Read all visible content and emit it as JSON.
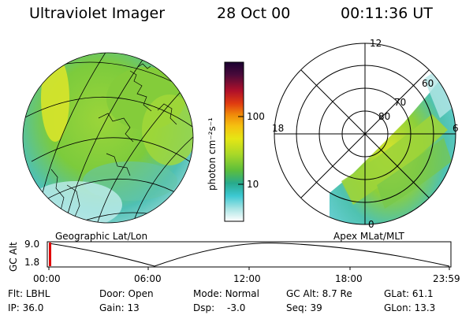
{
  "header": {
    "title": "Ultraviolet Imager",
    "date": "28 Oct 00",
    "time": "00:11:36 UT"
  },
  "colorbar": {
    "unit": "photon cm⁻²s⁻¹",
    "ticks": [
      "100",
      "10"
    ],
    "colors": [
      "#1a0030",
      "#4a0a3a",
      "#8a0f2a",
      "#c81414",
      "#e03c10",
      "#f08a0a",
      "#f5c010",
      "#e6e614",
      "#b4dc1e",
      "#78c832",
      "#3cb43c",
      "#28aa8c",
      "#3cc8d2",
      "#8cdcdc",
      "#c8ecec",
      "#ffffff"
    ]
  },
  "left_map": {
    "caption": "Geographic Lat/Lon"
  },
  "right_map": {
    "caption": "Apex MLat/MLT",
    "mlt_labels": {
      "top": "12",
      "left": "18",
      "right": "6",
      "bottom": "0"
    },
    "lat_labels": [
      "80",
      "70",
      "60"
    ]
  },
  "timeline": {
    "axis_label": "GC Alt",
    "y_ticks": [
      "9.0",
      "1.8"
    ],
    "x_ticks": [
      "00:00",
      "06:00",
      "12:00",
      "18:00",
      "23:59"
    ]
  },
  "info": {
    "row1": [
      {
        "label": "Flt:",
        "value": "LBHL"
      },
      {
        "label": "Door:",
        "value": "Open"
      },
      {
        "label": "Mode:",
        "value": "Normal"
      },
      {
        "label": "GC Alt:",
        "value": "8.7 Re"
      },
      {
        "label": "GLat:",
        "value": "61.1"
      }
    ],
    "row2": [
      {
        "label": "IP:",
        "value": "36.0"
      },
      {
        "label": "Gain:",
        "value": "13"
      },
      {
        "label": "Dsp:",
        "value": "-3.0"
      },
      {
        "label": "Seq:",
        "value": "39"
      },
      {
        "label": "GLon:",
        "value": "13.3"
      }
    ]
  },
  "colors": {
    "aurora_green": "#8cd23c",
    "aurora_yellow": "#dce628",
    "aurora_cyan": "#50c8d2",
    "aurora_pale": "#b4e6e6",
    "marker_red": "#e00000"
  }
}
